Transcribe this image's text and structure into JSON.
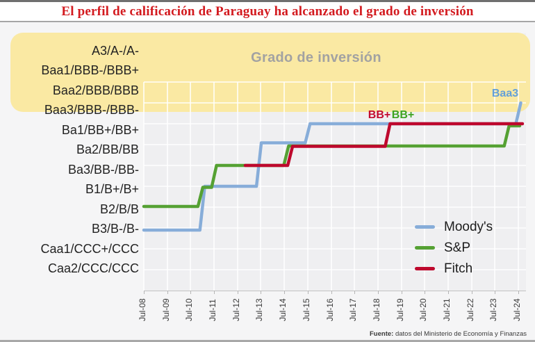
{
  "title": "El perfil de calificación de Paraguay ha alcanzado el grado de inversión",
  "source": {
    "label": "Fuente:",
    "text": " datos del Ministerio de Economía y Finanzas"
  },
  "annotations": {
    "grade_band_label": "Grado de inversión",
    "moodys_end_label": "Baa3",
    "fitch_bbplus_label": "BB+",
    "sp_bbplus_label": "BB+"
  },
  "colors": {
    "moodys": "#87add9",
    "sp": "#55a133",
    "fitch": "#be082d",
    "grade_band": "#fae9a3",
    "title_red": "#d31a1f"
  },
  "chart_data": {
    "type": "line",
    "subtype": "step",
    "title": "El perfil de calificación de Paraguay ha alcanzado el grado de inversión",
    "grid": true,
    "legend_position": "bottom-right",
    "y_categories_top_down": [
      "A3/A-/A-",
      "Baa1/BBB-/BBB+",
      "Baa2/BBB/BBB",
      "Baa3/BBB-/BBB-",
      "Ba1/BB+/BB+",
      "Ba2/BB/BB",
      "Ba3/BB-/BB-",
      "B1/B+/B+",
      "B2/B/B",
      "B3/B-/B-",
      "Caa1/CCC+/CCC",
      "Caa2/CCC/CCC"
    ],
    "x_ticks": [
      "Jul-08",
      "Jul-09",
      "Jul-10",
      "Jul-11",
      "Jul-12",
      "Jul-13",
      "Jul-14",
      "Jul-15",
      "Jul-16",
      "Jul-17",
      "Jul-18",
      "Jul-19",
      "Jul-20",
      "Jul-21",
      "Jul-22",
      "Jul-23",
      "Jul-24"
    ],
    "investment_grade_band": {
      "label": "Grado de inversión",
      "covers_categories": [
        "A3/A-/A-",
        "Baa1/BBB-/BBB+",
        "Baa2/BBB/BBB",
        "Baa3/BBB-/BBB-"
      ]
    },
    "series": [
      {
        "name": "Moody's",
        "color": "#87add9",
        "end_annotation": "Baa3",
        "steps": [
          {
            "date": "Jul-08",
            "rating": "B3"
          },
          {
            "date": "Jan-11",
            "rating": "B1"
          },
          {
            "date": "Jun-13",
            "rating": "Ba2"
          },
          {
            "date": "Jul-15",
            "rating": "Ba1"
          },
          {
            "date": "Jul-24",
            "rating": "Baa3"
          }
        ]
      },
      {
        "name": "S&P",
        "color": "#55a133",
        "end_annotation": "BB+",
        "steps": [
          {
            "date": "Jul-08",
            "rating": "B"
          },
          {
            "date": "Dec-10",
            "rating": "B+"
          },
          {
            "date": "Jul-11",
            "rating": "BB-"
          },
          {
            "date": "Aug-14",
            "rating": "BB"
          },
          {
            "date": "Jan-24",
            "rating": "BB+"
          }
        ]
      },
      {
        "name": "Fitch",
        "color": "#be082d",
        "end_annotation": "BB+",
        "steps": [
          {
            "date": "Nov-12",
            "rating": "BB-"
          },
          {
            "date": "Oct-14",
            "rating": "BB"
          },
          {
            "date": "Dec-18",
            "rating": "BB+"
          }
        ]
      }
    ]
  }
}
